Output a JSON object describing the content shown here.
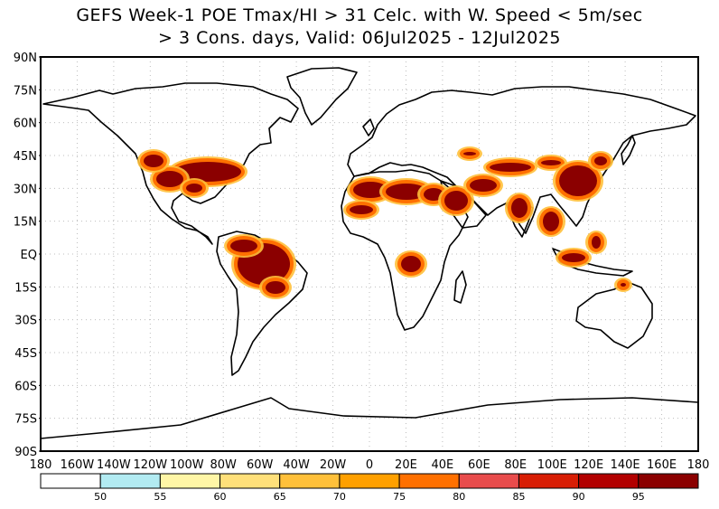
{
  "title": {
    "line1": "GEFS Week-1 POE Tmax/HI > 31 Celc. with W. Speed < 5m/sec",
    "line2": "> 3 Cons. days, Valid: 06Jul2025 - 12Jul2025"
  },
  "axes": {
    "lat_labels": [
      "90N",
      "75N",
      "60N",
      "45N",
      "30N",
      "15N",
      "EQ",
      "15S",
      "30S",
      "45S",
      "60S",
      "75S",
      "90S"
    ],
    "lon_labels": [
      "180",
      "160W",
      "140W",
      "120W",
      "100W",
      "80W",
      "60W",
      "40W",
      "20W",
      "0",
      "20E",
      "40E",
      "60E",
      "80E",
      "100E",
      "120E",
      "140E",
      "160E",
      "180"
    ]
  },
  "colorbar": {
    "colors": [
      "#ffffff",
      "#b2ebf2",
      "#fff6a6",
      "#ffe07a",
      "#ffc03a",
      "#ffa000",
      "#ff7000",
      "#e84c4c",
      "#d81e05",
      "#b20000",
      "#8b0000"
    ],
    "labels": [
      "50",
      "55",
      "60",
      "65",
      "70",
      "75",
      "80",
      "85",
      "90",
      "95"
    ]
  },
  "colors": {
    "hot_outer": "#ffc03a",
    "hot_mid": "#ff7000",
    "hot_core": "#8b0000"
  }
}
